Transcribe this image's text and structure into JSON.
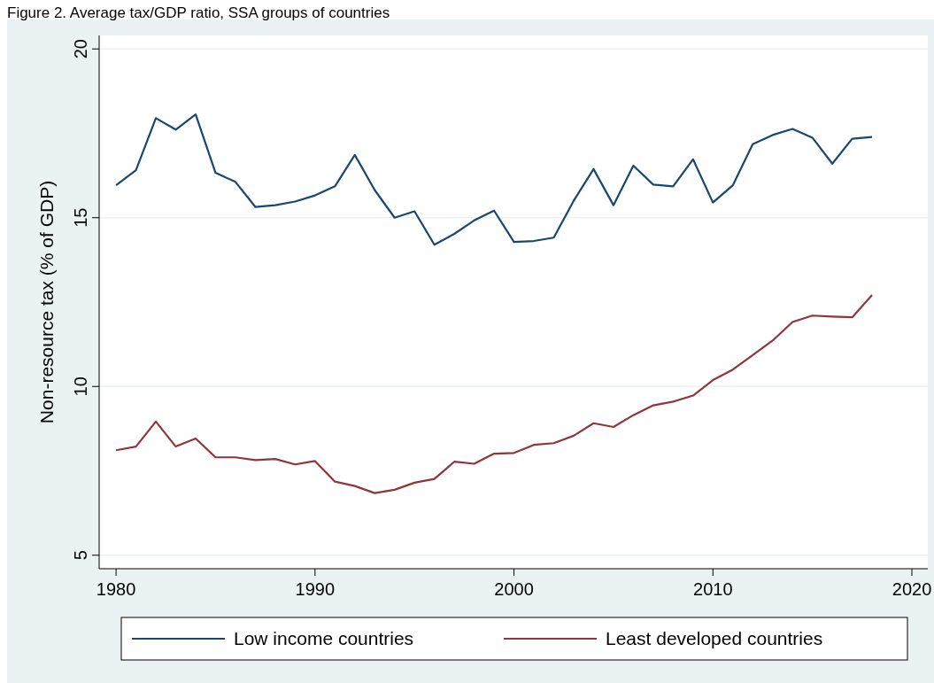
{
  "chart_data": {
    "type": "line",
    "title": "Figure 2. Average tax/GDP ratio, SSA groups of countries",
    "ylabel": "Non-resource tax (% of GDP)",
    "x": [
      1980,
      1981,
      1982,
      1983,
      1984,
      1985,
      1986,
      1987,
      1988,
      1989,
      1990,
      1991,
      1992,
      1993,
      1994,
      1995,
      1996,
      1997,
      1998,
      1999,
      2000,
      2001,
      2002,
      2003,
      2004,
      2005,
      2006,
      2007,
      2008,
      2009,
      2010,
      2011,
      2012,
      2013,
      2014,
      2015,
      2016,
      2017,
      2018
    ],
    "series": [
      {
        "name": "Low income countries",
        "color": "#1a476f",
        "values": [
          15.96,
          16.41,
          17.95,
          17.61,
          18.06,
          16.33,
          16.06,
          15.32,
          15.37,
          15.48,
          15.66,
          15.93,
          16.86,
          15.82,
          15.0,
          15.19,
          14.2,
          14.52,
          14.92,
          15.21,
          14.28,
          14.31,
          14.41,
          15.5,
          16.44,
          15.37,
          16.54,
          15.98,
          15.93,
          16.73,
          15.45,
          15.96,
          17.18,
          17.45,
          17.63,
          17.37,
          16.6,
          17.34,
          17.39
        ]
      },
      {
        "name": "Least developed countries",
        "color": "#90353b",
        "values": [
          8.11,
          8.22,
          8.96,
          8.22,
          8.46,
          7.9,
          7.9,
          7.82,
          7.85,
          7.69,
          7.79,
          7.18,
          7.05,
          6.84,
          6.94,
          7.15,
          7.26,
          7.77,
          7.71,
          8.01,
          8.03,
          8.27,
          8.32,
          8.54,
          8.91,
          8.8,
          9.15,
          9.44,
          9.55,
          9.73,
          10.19,
          10.5,
          10.93,
          11.36,
          11.91,
          12.1,
          12.07,
          12.05,
          12.71
        ]
      }
    ],
    "xlim": [
      1979.15,
      2020.8
    ],
    "xticks": [
      1980,
      1990,
      2000,
      2010,
      2020
    ],
    "ylim": [
      4.6,
      20.4
    ],
    "yticks": [
      5,
      10,
      15,
      20
    ],
    "grid": "y",
    "legend": "bottom"
  }
}
